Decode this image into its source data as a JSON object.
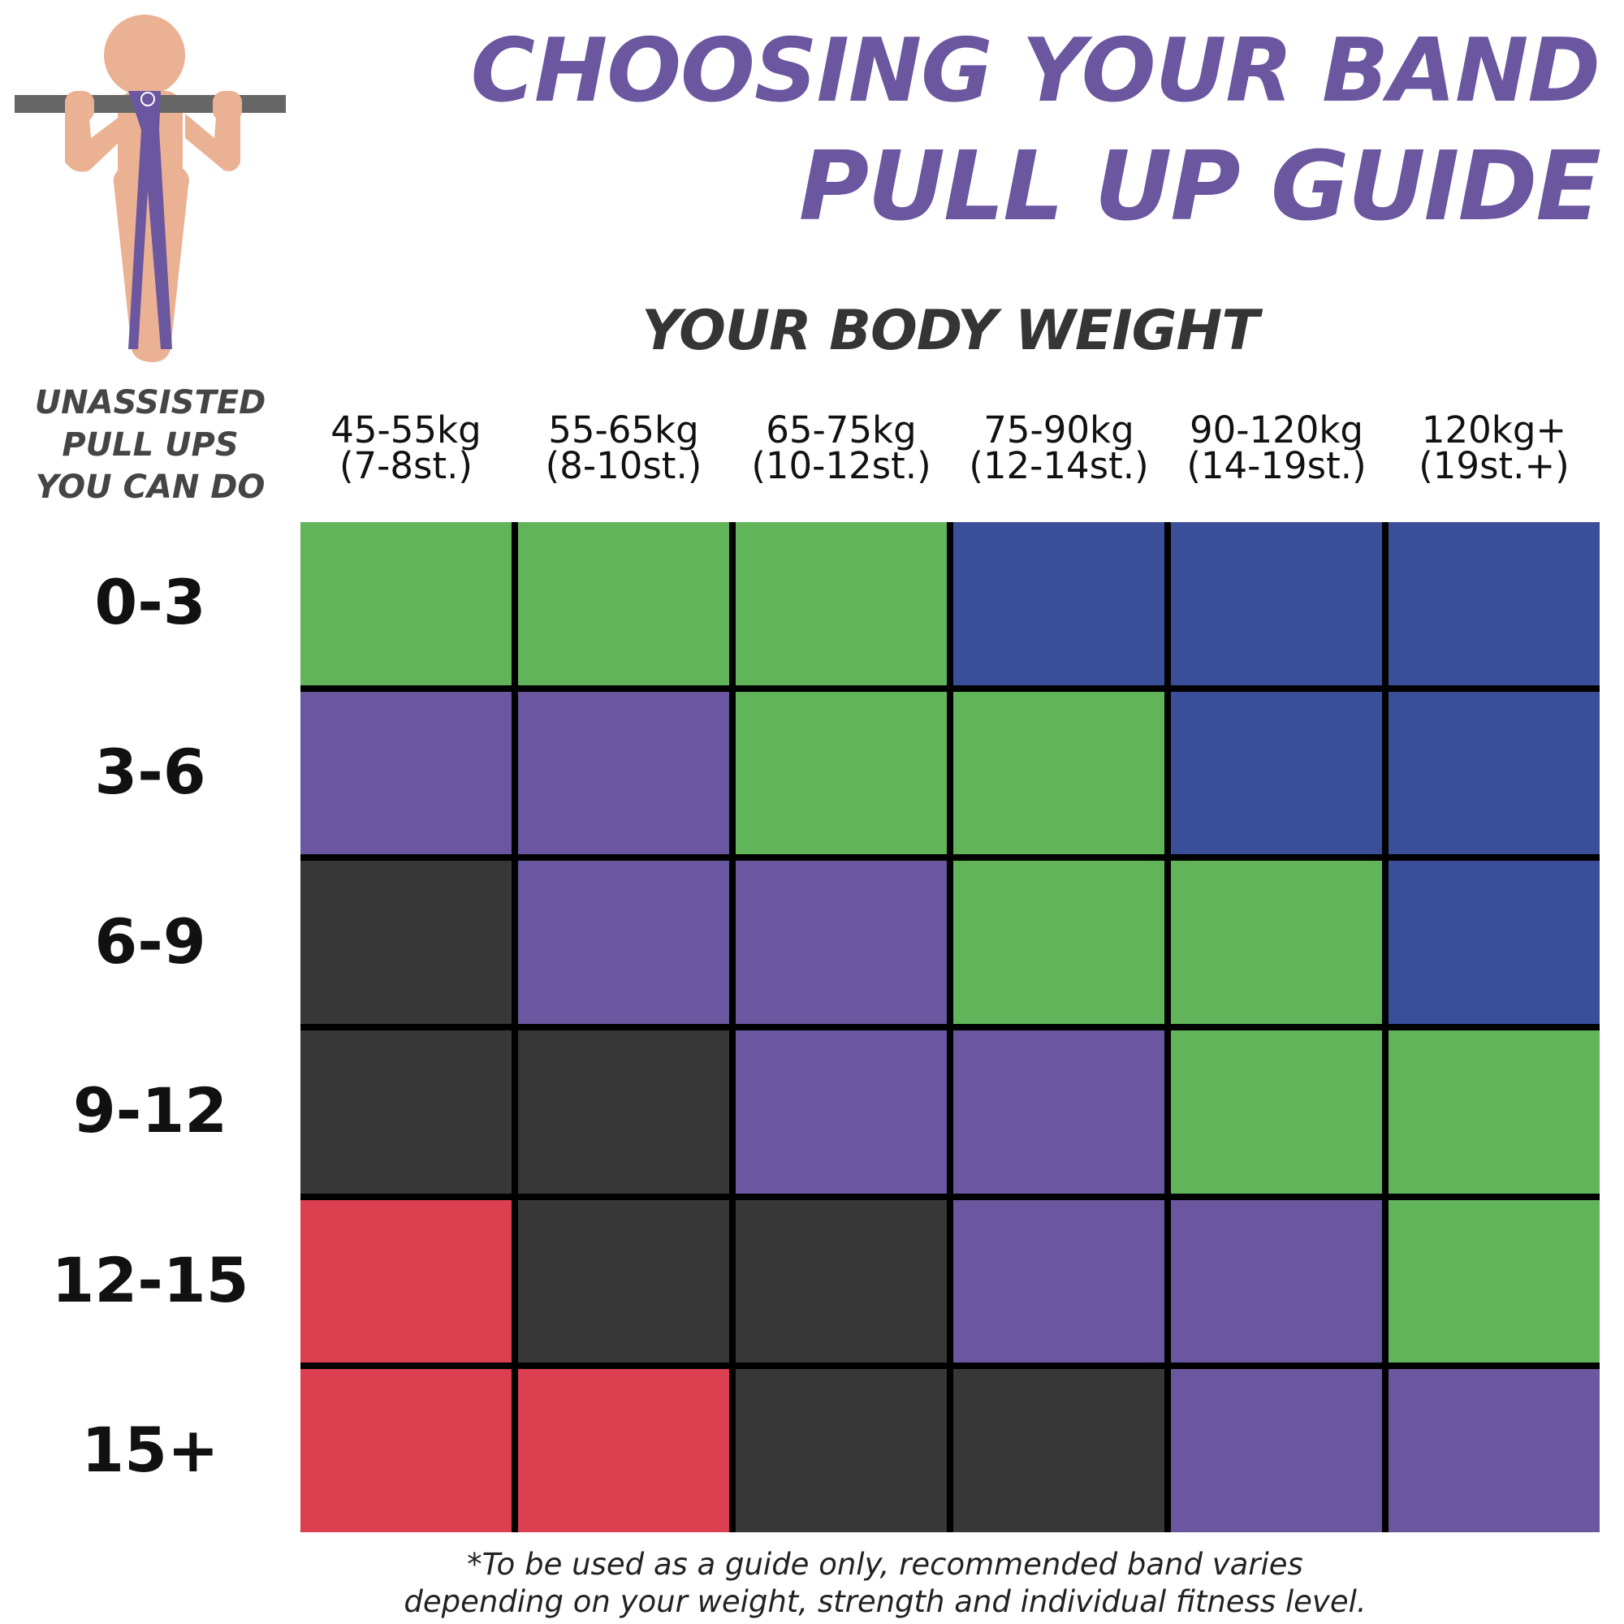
{
  "header": {
    "title_line1": "CHOOSING YOUR BAND",
    "title_line2": "PULL UP GUIDE",
    "subtitle": "YOUR BODY WEIGHT",
    "row_axis_title": "UNASSISTED\nPULL UPS\nYOU CAN DO"
  },
  "illustration": {
    "icon": "pull-up-figure-icon",
    "bar_color": "#666666",
    "skin_color": "#eab193",
    "band_color": "#6b56a0"
  },
  "colors": {
    "green": "#62b45b",
    "blue": "#3a4e9a",
    "purple": "#6b56a0",
    "black": "#373738",
    "red": "#dc3f50",
    "gridline": "#000000"
  },
  "chart_data": {
    "type": "heatmap",
    "title": "CHOOSING YOUR BAND PULL UP GUIDE",
    "xlabel": "YOUR BODY WEIGHT",
    "ylabel": "UNASSISTED PULL UPS YOU CAN DO",
    "columns": [
      {
        "kg": "45-55kg",
        "st": "(7-8st.)"
      },
      {
        "kg": "55-65kg",
        "st": "(8-10st.)"
      },
      {
        "kg": "65-75kg",
        "st": "(10-12st.)"
      },
      {
        "kg": "75-90kg",
        "st": "(12-14st.)"
      },
      {
        "kg": "90-120kg",
        "st": "(14-19st.)"
      },
      {
        "kg": "120kg+",
        "st": "(19st.+)"
      }
    ],
    "rows": [
      "0-3",
      "3-6",
      "6-9",
      "9-12",
      "12-15",
      "15+"
    ],
    "cells": [
      [
        "green",
        "green",
        "green",
        "blue",
        "blue",
        "blue"
      ],
      [
        "purple",
        "purple",
        "green",
        "green",
        "blue",
        "blue"
      ],
      [
        "black",
        "purple",
        "purple",
        "green",
        "green",
        "blue"
      ],
      [
        "black",
        "black",
        "purple",
        "purple",
        "green",
        "green"
      ],
      [
        "red",
        "black",
        "black",
        "purple",
        "purple",
        "green"
      ],
      [
        "red",
        "red",
        "black",
        "black",
        "purple",
        "purple"
      ]
    ]
  },
  "footnote": "*To be used as a guide only, recommended band varies\ndepending on your weight, strength and individual fitness level."
}
